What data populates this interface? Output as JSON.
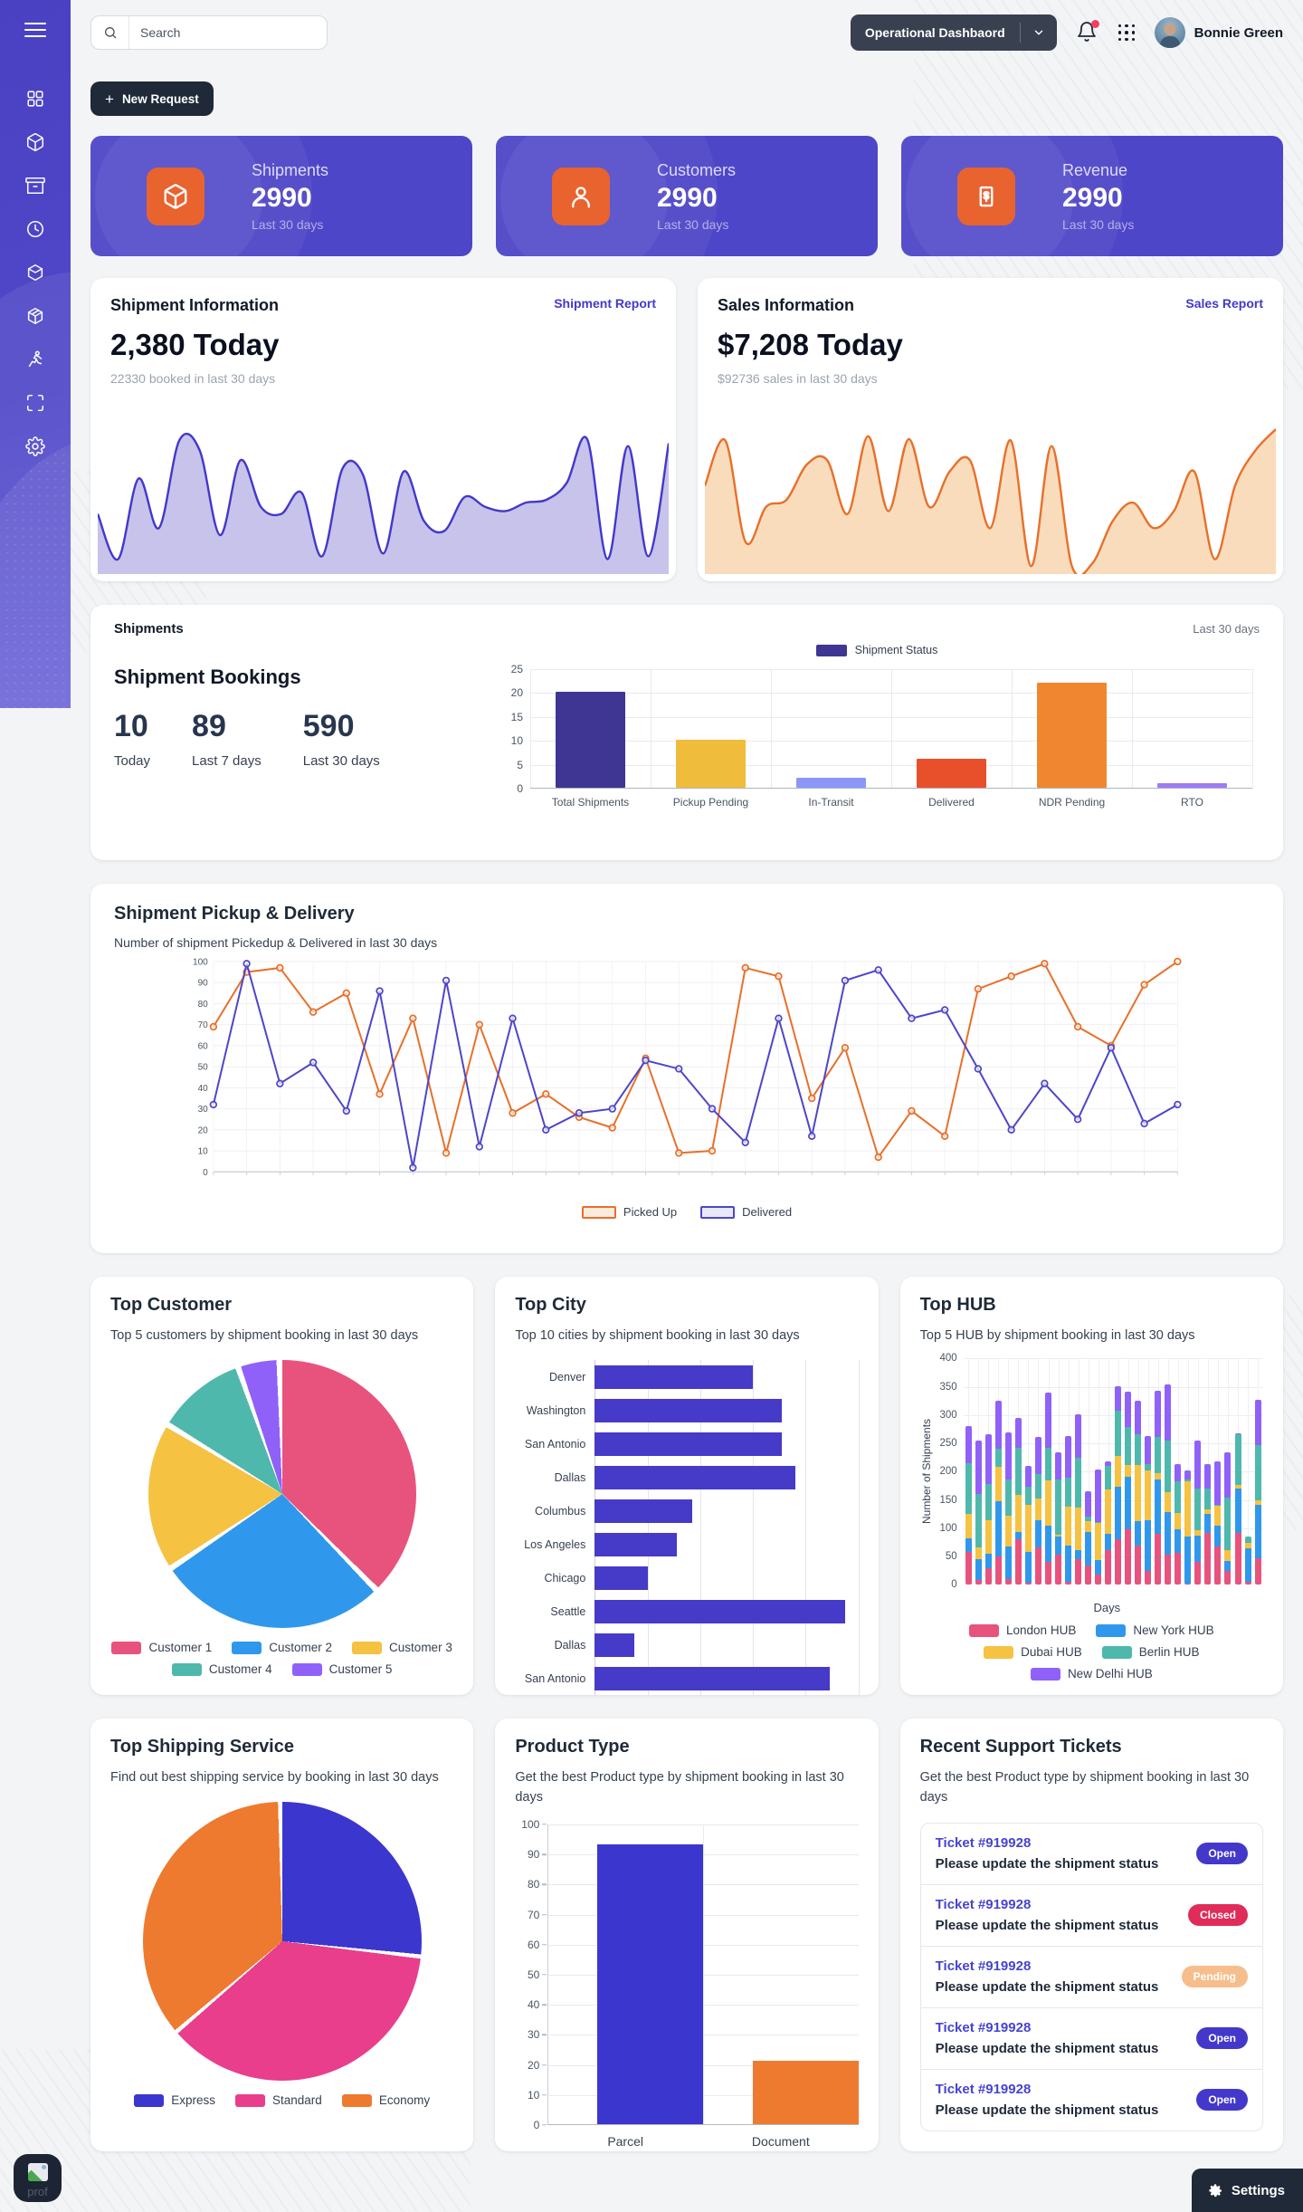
{
  "header": {
    "search_placeholder": "Search",
    "workspace_selector": "Operational Dashbaord",
    "user_name": "Bonnie Green"
  },
  "sidebar": {
    "items": [
      "menu",
      "dashboard-grid",
      "package",
      "archive-box",
      "clock",
      "cube",
      "package-box",
      "runner",
      "scan-frame",
      "gear"
    ]
  },
  "actions": {
    "new_request": "New Request"
  },
  "stat_cards": [
    {
      "label": "Shipments",
      "value": "2990",
      "period": "Last 30 days",
      "icon": "package-icon"
    },
    {
      "label": "Customers",
      "value": "2990",
      "period": "Last 30 days",
      "icon": "user-icon"
    },
    {
      "label": "Revenue",
      "value": "2990",
      "period": "Last 30 days",
      "icon": "receipt-icon"
    }
  ],
  "shipment_info": {
    "title": "Shipment Information",
    "link": "Shipment Report",
    "amount": "2,380 Today",
    "subtitle": "22330 booked in last 30 days"
  },
  "sales_info": {
    "title": "Sales Information",
    "link": "Sales Report",
    "amount": "$7,208 Today",
    "subtitle": "$92736 sales in last 30 days"
  },
  "shipments_panel": {
    "title": "Shipments",
    "period": "Last 30 days",
    "bookings_title": "Shipment Bookings",
    "stats": [
      {
        "value": "10",
        "label": "Today"
      },
      {
        "value": "89",
        "label": "Last 7 days"
      },
      {
        "value": "590",
        "label": "Last 30 days"
      }
    ]
  },
  "pickup_delivery": {
    "title": "Shipment Pickup & Delivery",
    "subtitle": "Number of shipment Pickedup & Delivered in last 30 days"
  },
  "top_customer": {
    "title": "Top Customer",
    "subtitle": "Top 5 customers by shipment booking in last 30 days"
  },
  "top_city": {
    "title": "Top City",
    "subtitle": "Top 10 cities by shipment booking in last 30 days"
  },
  "top_hub": {
    "title": "Top HUB",
    "subtitle": "Top 5 HUB by shipment booking in last 30 days"
  },
  "top_shipping": {
    "title": "Top Shipping Service",
    "subtitle": "Find out best shipping service by booking in last 30 days"
  },
  "product_type": {
    "title": "Product Type",
    "subtitle": "Get the best Product type by shipment booking in last 30 days"
  },
  "support_tickets": {
    "title": "Recent Support Tickets",
    "subtitle": "Get the best Product type by shipment booking in last 30 days",
    "tickets": [
      {
        "id": "Ticket #919928",
        "message": "Please update the shipment status",
        "status": "Open"
      },
      {
        "id": "Ticket #919928",
        "message": "Please update the shipment status",
        "status": "Closed"
      },
      {
        "id": "Ticket #919928",
        "message": "Please update the shipment status",
        "status": "Pending"
      },
      {
        "id": "Ticket #919928",
        "message": "Please update the shipment status",
        "status": "Open"
      },
      {
        "id": "Ticket #919928",
        "message": "Please update the shipment status",
        "status": "Open"
      }
    ],
    "status_colors": {
      "Open": "#4338CA",
      "Closed": "#E02C5A",
      "Pending": "#F6BE8C"
    }
  },
  "settings_label": "Settings",
  "chat_fab_label": "prof",
  "chart_data": [
    {
      "id": "shipment_info_area",
      "type": "area",
      "title": "Shipment bookings trend, last 30 days",
      "ylim": [
        0,
        100
      ],
      "color": "#4338CA",
      "fill": "#C7C3EA",
      "values": [
        40,
        8,
        65,
        30,
        92,
        85,
        25,
        78,
        45,
        40,
        55,
        10,
        72,
        68,
        12,
        70,
        35,
        28,
        52,
        45,
        42,
        48,
        50,
        62,
        93,
        8,
        88,
        10,
        90
      ]
    },
    {
      "id": "sales_info_area",
      "type": "area",
      "title": "Sales trend, last 30 days",
      "ylim": [
        0,
        100
      ],
      "color": "#E8702A",
      "fill": "#F8DCBC",
      "values": [
        60,
        92,
        20,
        45,
        50,
        75,
        78,
        40,
        95,
        42,
        93,
        45,
        70,
        78,
        30,
        92,
        3,
        88,
        3,
        5,
        35,
        48,
        30,
        42,
        70,
        8,
        60,
        85,
        100
      ]
    },
    {
      "id": "shipment_status_bar",
      "type": "bar",
      "title": "Shipment Status",
      "categories": [
        "Total Shipments",
        "Pickup Pending",
        "In-Transit",
        "Delivered",
        "NDR Pending",
        "RTO"
      ],
      "values": [
        20,
        10,
        2,
        6,
        22,
        1
      ],
      "colors": [
        "#3F3693",
        "#F0BC3C",
        "#8B97F7",
        "#E8502B",
        "#F0862F",
        "#9F7BF5"
      ],
      "ylim": [
        0,
        25
      ],
      "yticks": [
        0,
        5,
        10,
        15,
        20,
        25
      ],
      "legend_color": "#3F3693"
    },
    {
      "id": "pickup_delivery_line",
      "type": "line",
      "ylim": [
        0,
        100
      ],
      "ytick_step": 10,
      "x": "Days 1-30",
      "series": [
        {
          "name": "Picked Up",
          "color": "#E8702A",
          "legend_fill": "#FBEBDC",
          "values": [
            69,
            95,
            97,
            76,
            85,
            37,
            73,
            9,
            70,
            28,
            37,
            26,
            21,
            54,
            9,
            10,
            97,
            93,
            35,
            59,
            7,
            29,
            17,
            87,
            93,
            99,
            69,
            60,
            89,
            100
          ]
        },
        {
          "name": "Delivered",
          "color": "#4E46C8",
          "legend_fill": "#E9E8F8",
          "values": [
            32,
            99,
            42,
            52,
            29,
            86,
            2,
            91,
            12,
            73,
            20,
            28,
            30,
            53,
            49,
            30,
            14,
            73,
            17,
            91,
            96,
            73,
            77,
            49,
            20,
            42,
            25,
            59,
            23,
            32
          ]
        }
      ]
    },
    {
      "id": "top_customer_pie",
      "type": "pie",
      "labels": [
        "Customer 1",
        "Customer 2",
        "Customer 3",
        "Customer 4",
        "Customer 5"
      ],
      "values": [
        38,
        28,
        18,
        11,
        5
      ],
      "colors": [
        "#E8537E",
        "#3098EC",
        "#F5C242",
        "#4FB8AC",
        "#9061F9"
      ]
    },
    {
      "id": "top_city_hbar",
      "type": "bar",
      "orientation": "horizontal",
      "categories": [
        "Denver",
        "Washington",
        "San Antonio",
        "Dallas",
        "Columbus",
        "Los Angeles",
        "Chicago",
        "Seattle",
        "Dallas",
        "San Antonio"
      ],
      "values": [
        60,
        71,
        71,
        76,
        37,
        31,
        20,
        95,
        15,
        89
      ],
      "color": "#463AC8",
      "xlim": [
        0,
        100
      ],
      "xticks": [
        0,
        20,
        40,
        60,
        80,
        100
      ]
    },
    {
      "id": "top_hub_stacked",
      "type": "bar",
      "stacked": true,
      "ylabel": "Number of Shipments",
      "xlabel": "Days",
      "ylim": [
        0,
        400
      ],
      "yticks": [
        0,
        50,
        100,
        150,
        200,
        250,
        300,
        350,
        400
      ],
      "series_names": [
        "London HUB",
        "New York HUB",
        "Dubai HUB",
        "Berlin HUB",
        "New Delhi HUB"
      ],
      "series_colors": [
        "#E8537E",
        "#3098EC",
        "#F5C242",
        "#4FB8AC",
        "#9061F9"
      ],
      "bars": [
        [
          59,
          24,
          42,
          90,
          66
        ],
        [
          8,
          38,
          20,
          95,
          94
        ],
        [
          30,
          25,
          60,
          63,
          88
        ],
        [
          51,
          97,
          60,
          32,
          85
        ],
        [
          10,
          58,
          55,
          63,
          83
        ],
        [
          81,
          12,
          66,
          84,
          52
        ],
        [
          4,
          54,
          84,
          31,
          38
        ],
        [
          67,
          47,
          38,
          44,
          65
        ],
        [
          40,
          64,
          80,
          58,
          98
        ],
        [
          53,
          33,
          3,
          98,
          48
        ],
        [
          6,
          63,
          70,
          51,
          73
        ],
        [
          45,
          16,
          75,
          88,
          78
        ],
        [
          35,
          58,
          20,
          8,
          44
        ],
        [
          18,
          26,
          65,
          2,
          93
        ],
        [
          61,
          30,
          78,
          42,
          8
        ],
        [
          81,
          92,
          55,
          80,
          43
        ],
        [
          98,
          93,
          21,
          67,
          62
        ],
        [
          70,
          42,
          100,
          55,
          59
        ],
        [
          25,
          90,
          88,
          10,
          50
        ],
        [
          91,
          95,
          12,
          64,
          81
        ],
        [
          53,
          75,
          36,
          91,
          99
        ],
        [
          57,
          42,
          28,
          56,
          30
        ],
        [
          2,
          83,
          98,
          3,
          17
        ],
        [
          40,
          47,
          10,
          73,
          85
        ],
        [
          92,
          33,
          8,
          37,
          43
        ],
        [
          68,
          37,
          35,
          2,
          76
        ],
        [
          25,
          17,
          20,
          93,
          80
        ],
        [
          92,
          78,
          7,
          90,
          1
        ],
        [
          5,
          60,
          10,
          10,
          0
        ],
        [
          47,
          95,
          8,
          97,
          80
        ]
      ]
    },
    {
      "id": "top_shipping_pie",
      "type": "pie",
      "labels": [
        "Express",
        "Standard",
        "Economy"
      ],
      "values": [
        27,
        37,
        36
      ],
      "colors": [
        "#3B36CE",
        "#E83E8C",
        "#EE7A2F"
      ]
    },
    {
      "id": "product_type_bar",
      "type": "bar",
      "categories": [
        "Parcel",
        "Document"
      ],
      "values": [
        93,
        21
      ],
      "colors": [
        "#3B36CE",
        "#EE7A2F"
      ],
      "ylim": [
        0,
        100
      ],
      "yticks": [
        0,
        10,
        20,
        30,
        40,
        50,
        60,
        70,
        80,
        90,
        100
      ]
    }
  ]
}
